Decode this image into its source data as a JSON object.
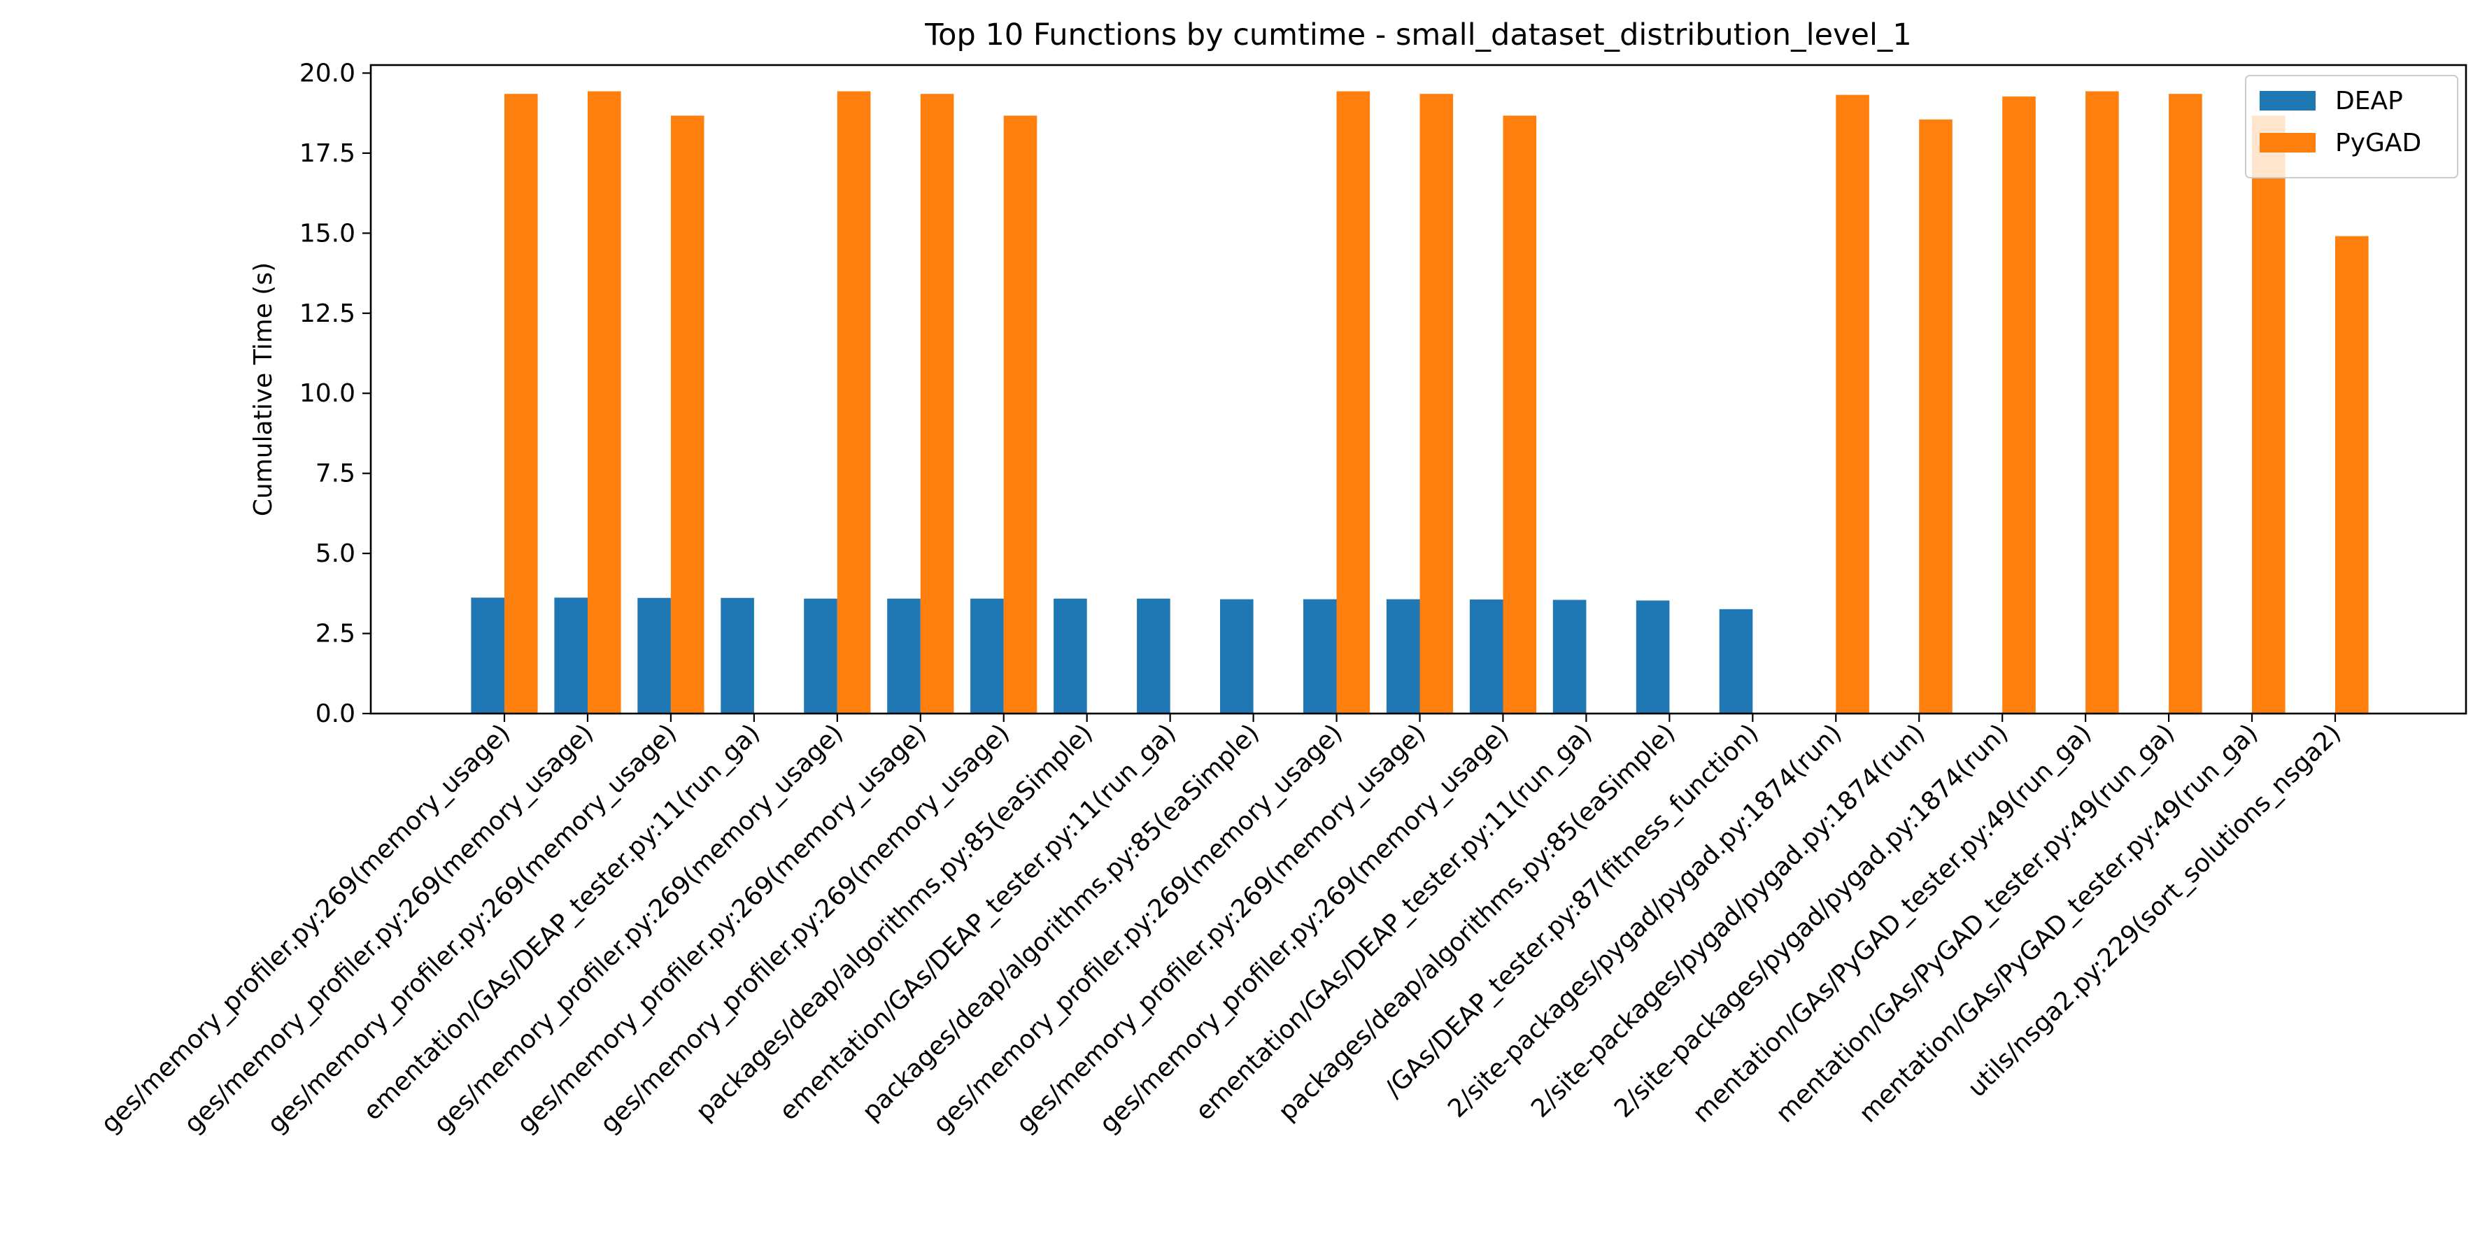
{
  "chart_data": {
    "type": "bar",
    "title": "Top 10 Functions by cumtime - small_dataset_distribution_level_1",
    "xlabel": "",
    "ylabel": "Cumulative Time (s)",
    "ylim": [
      0,
      20.25
    ],
    "yticks": [
      "0.0",
      "2.5",
      "5.0",
      "7.5",
      "10.0",
      "12.5",
      "15.0",
      "17.5",
      "20.0"
    ],
    "grid": false,
    "legend_position": "top-right",
    "categories": [
      "ges/memory_profiler.py:269(memory_usage)",
      "ges/memory_profiler.py:269(memory_usage)",
      "ges/memory_profiler.py:269(memory_usage)",
      "ementation/GAs/DEAP_tester.py:11(run_ga)",
      "ges/memory_profiler.py:269(memory_usage)",
      "ges/memory_profiler.py:269(memory_usage)",
      "ges/memory_profiler.py:269(memory_usage)",
      "packages/deap/algorithms.py:85(eaSimple)",
      "ementation/GAs/DEAP_tester.py:11(run_ga)",
      "packages/deap/algorithms.py:85(eaSimple)",
      "ges/memory_profiler.py:269(memory_usage)",
      "ges/memory_profiler.py:269(memory_usage)",
      "ges/memory_profiler.py:269(memory_usage)",
      "ementation/GAs/DEAP_tester.py:11(run_ga)",
      "packages/deap/algorithms.py:85(eaSimple)",
      "/GAs/DEAP_tester.py:87(fitness_function)",
      "2/site-packages/pygad/pygad.py:1874(run)",
      "2/site-packages/pygad/pygad.py:1874(run)",
      "2/site-packages/pygad/pygad.py:1874(run)",
      "mentation/GAs/PyGAD_tester.py:49(run_ga)",
      "mentation/GAs/PyGAD_tester.py:49(run_ga)",
      "mentation/GAs/PyGAD_tester.py:49(run_ga)",
      "utils/nsga2.py:229(sort_solutions_nsga2)"
    ],
    "series": [
      {
        "name": "DEAP",
        "color": "#1f77b4",
        "values": [
          3.62,
          3.62,
          3.61,
          3.61,
          3.59,
          3.59,
          3.59,
          3.59,
          3.59,
          3.57,
          3.57,
          3.57,
          3.56,
          3.55,
          3.53,
          3.26,
          null,
          null,
          null,
          null,
          null,
          null,
          null
        ]
      },
      {
        "name": "PyGAD",
        "color": "#ff7f0e",
        "values": [
          19.35,
          19.43,
          18.67,
          null,
          19.43,
          19.35,
          18.67,
          null,
          null,
          null,
          19.43,
          19.35,
          18.67,
          null,
          null,
          null,
          19.32,
          18.55,
          19.27,
          19.43,
          19.35,
          18.67,
          14.91
        ]
      }
    ]
  }
}
